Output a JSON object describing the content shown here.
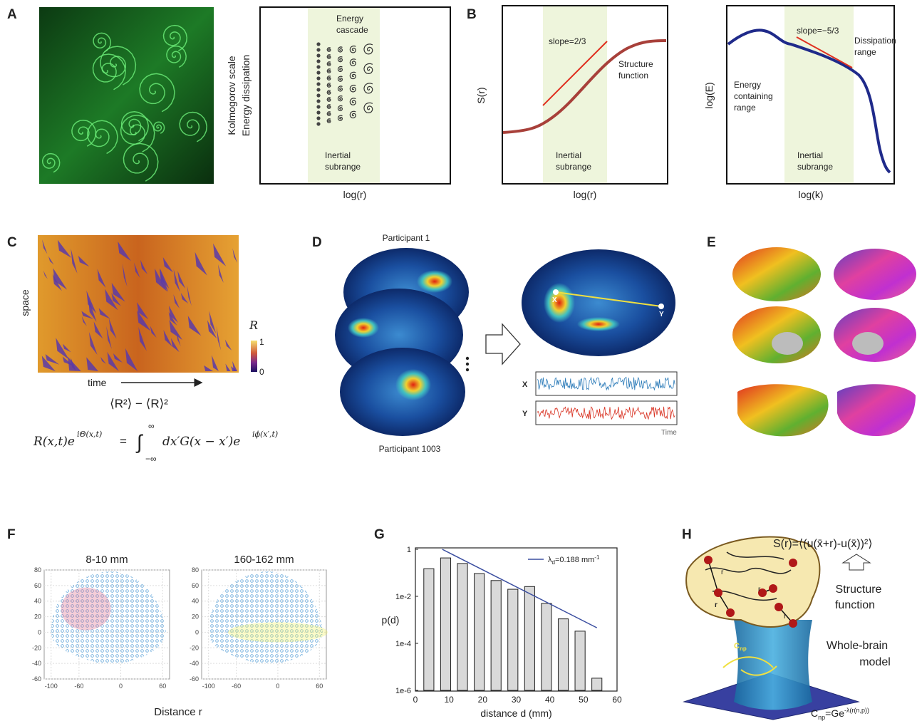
{
  "panel_labels": [
    "A",
    "B",
    "C",
    "D",
    "E",
    "F",
    "G",
    "H"
  ],
  "panel_a": {
    "y_label": [
      "Kolmogorov scale",
      "Energy dissipation"
    ],
    "cascade_note": [
      "Energy",
      "cascade"
    ],
    "band_note": [
      "Inertial",
      "subrange"
    ],
    "x_label": "log(r)"
  },
  "panel_b_structure": {
    "y_label": "S(r)",
    "slope_note": "slope=2/3",
    "curve_note": [
      "Structure",
      "function"
    ],
    "band_note": [
      "Inertial",
      "subrange"
    ],
    "x_label": "log(r)"
  },
  "panel_b_spectrum": {
    "y_label": "log(E)",
    "slope_note": "slope=−5/3",
    "dissipation_note": [
      "Dissipation",
      "range"
    ],
    "containing_note": [
      "Energy",
      "containing",
      "range"
    ],
    "band_note": [
      "Inertial",
      "subrange"
    ],
    "x_label": "log(k)"
  },
  "panel_c": {
    "y_label": "space",
    "x_label": "time",
    "colorbar_label": "R",
    "colorbar_max": "1",
    "colorbar_min": "0",
    "variance": "⟨R²⟩ − ⟨R⟩²",
    "equation_parts": [
      "R(x,t)e",
      "iΘ(x,t)",
      "=",
      "∫",
      "∞",
      "−∞",
      "dx′G(x − x′)e",
      "iϕ(x′,t)"
    ]
  },
  "panel_d": {
    "top_label": "Participant 1",
    "bottom_label": "Participant 1003",
    "point_x": "X",
    "point_y": "Y",
    "trace_x": "X",
    "trace_y": "Y",
    "time_label": "Time"
  },
  "panel_h": {
    "formula": "S(r)=⟨(u(x̄+r)-u(x̄))²⟩",
    "arrow_note": [
      "Structure",
      "function"
    ],
    "model_note": [
      "Whole-brain",
      "model"
    ],
    "edge_labels": [
      "r",
      "r",
      "r",
      "r"
    ],
    "coupling_parts": [
      "C",
      "np"
    ],
    "kernel_parts": [
      "C",
      "np",
      "=Ge",
      "-λ(r(n,p))"
    ]
  },
  "chart_data": [
    {
      "type": "scatter",
      "title": "8-10 mm",
      "x_label": "Distance r",
      "xlim": [
        -110,
        70
      ],
      "ylim": [
        -60,
        80
      ],
      "xticks": [
        -100,
        -60,
        0,
        60
      ],
      "yticks": [
        -60,
        -40,
        -20,
        0,
        20,
        40,
        60,
        80
      ],
      "grid": true,
      "color": "#3b8fd0"
    },
    {
      "type": "scatter",
      "title": "160-162 mm",
      "xlim": [
        -110,
        70
      ],
      "ylim": [
        -60,
        80
      ],
      "xticks": [
        -100,
        -60,
        0,
        60
      ],
      "yticks": [
        -60,
        -40,
        -20,
        0,
        20,
        40,
        60,
        80
      ],
      "grid": true,
      "color": "#3b8fd0"
    },
    {
      "type": "bar",
      "x_label": "distance d (mm)",
      "y_label": "p(d)",
      "log_y": true,
      "xlim": [
        0,
        60
      ],
      "xticks": [
        0,
        10,
        20,
        30,
        40,
        50,
        60
      ],
      "ylim": [
        1e-06,
        1
      ],
      "yticks": [
        1,
        {
          "value": 0.01,
          "label": "1e-2"
        },
        {
          "value": 0.0001,
          "label": "1e-4"
        },
        {
          "value": 1e-06,
          "label": "1e-6"
        }
      ],
      "x": [
        4,
        9,
        14,
        19,
        24,
        29,
        34,
        39,
        44,
        49,
        54
      ],
      "series": [
        {
          "type": "bar",
          "color": "#d9d9d9",
          "values": [
            0.15,
            0.43,
            0.25,
            0.093,
            0.047,
            0.02,
            0.026,
            0.005,
            0.0011,
            0.00033,
            3.3e-06
          ]
        },
        {
          "type": "line",
          "name_parts": [
            "λ",
            "d",
            "=0.188 mm",
            "-1"
          ],
          "color": "#3b4ea0",
          "x": [
            8,
            54
          ],
          "values": [
            1,
            0.00046
          ]
        }
      ],
      "legend": "upper right"
    }
  ]
}
